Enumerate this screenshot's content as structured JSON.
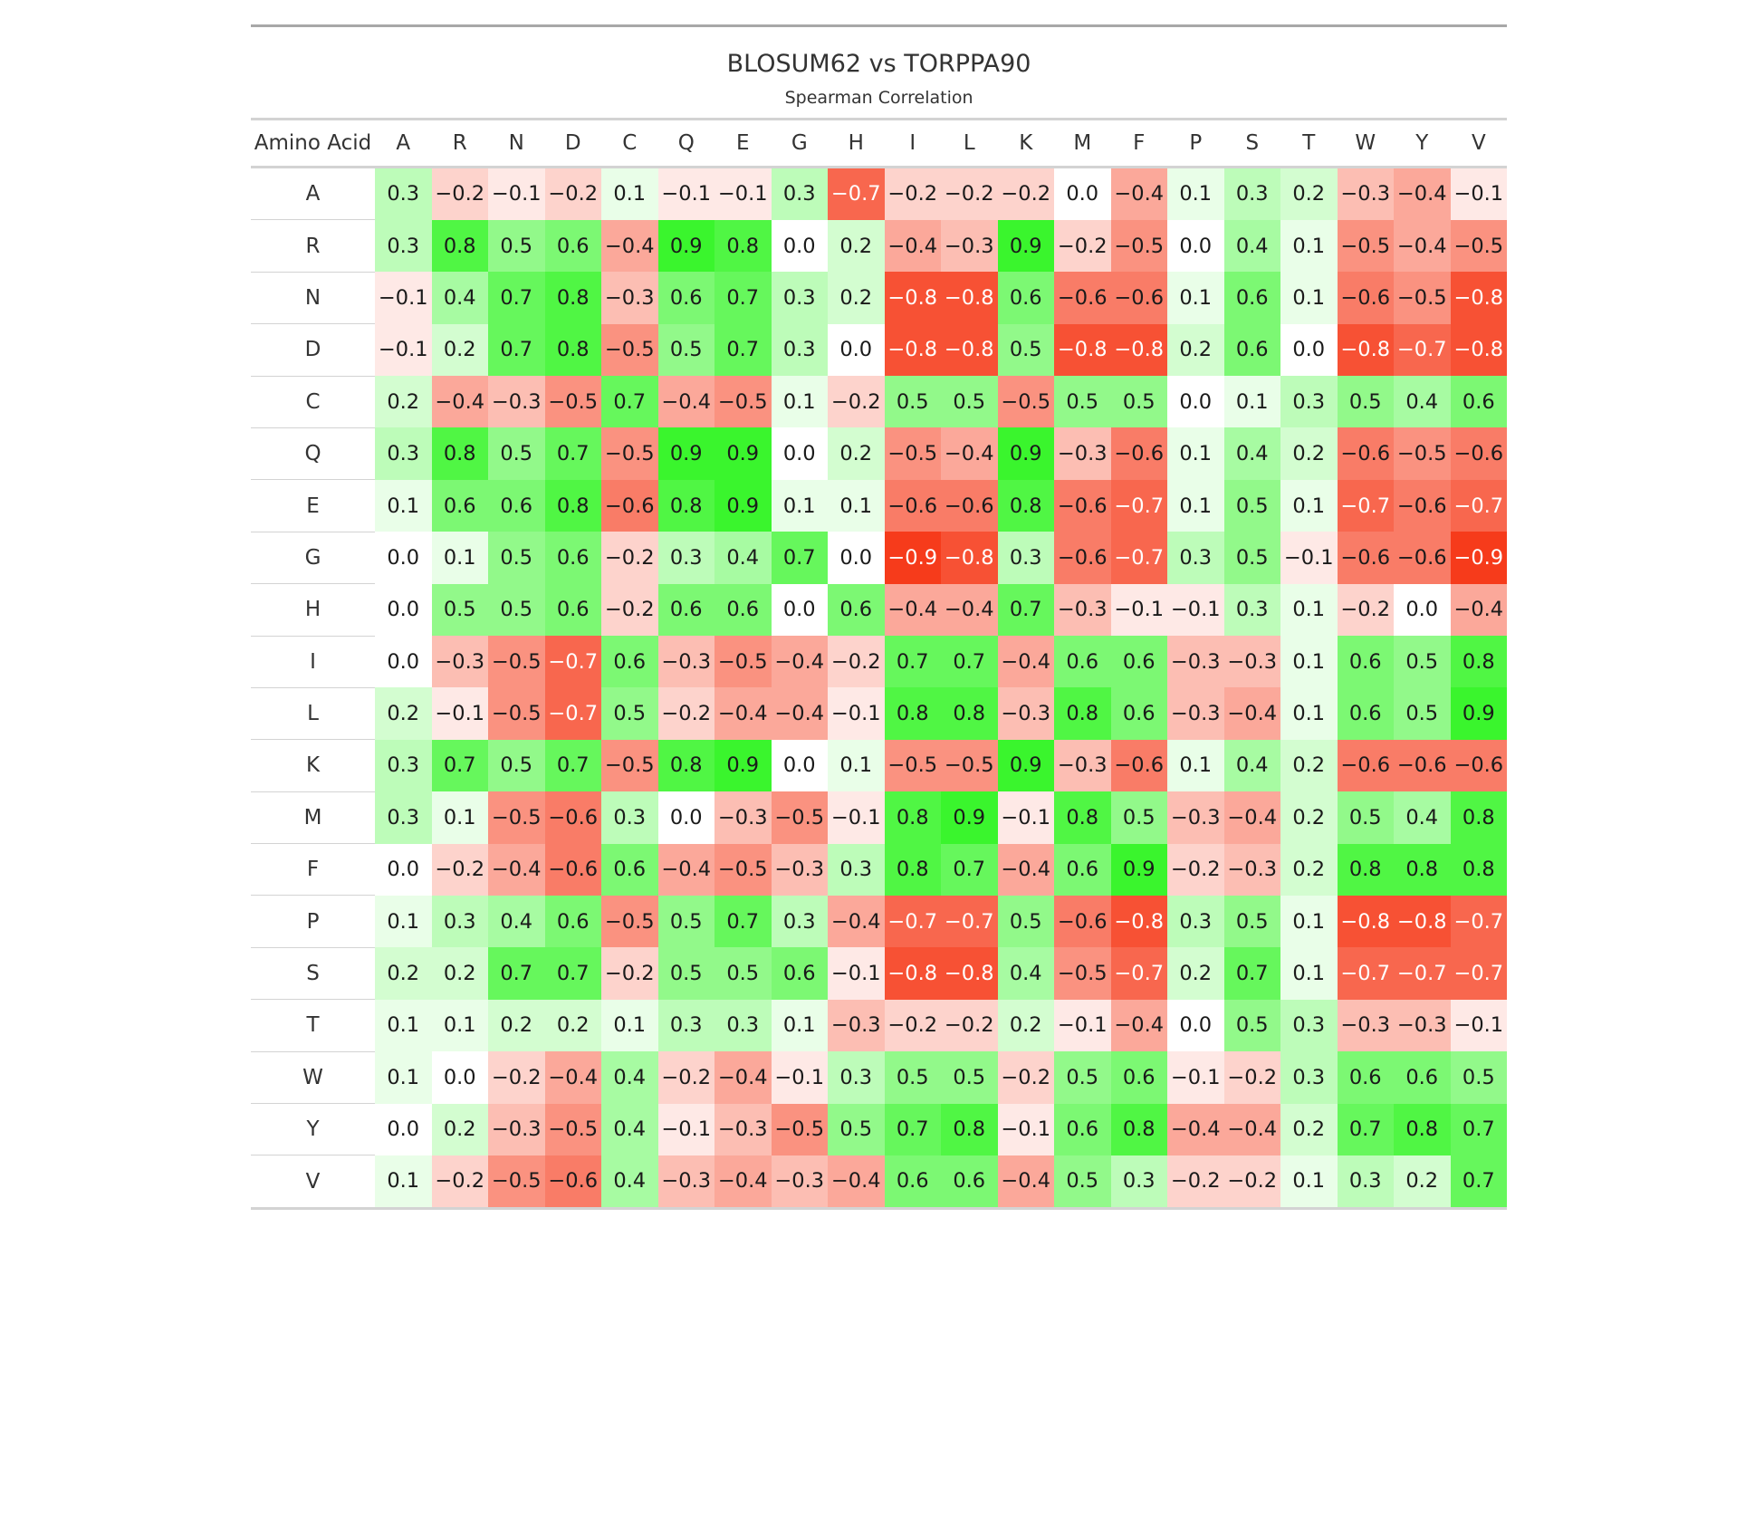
{
  "chart_data": {
    "type": "heatmap",
    "title": "BLOSUM62 vs TORPPA90",
    "subtitle": "Spearman Correlation",
    "row_header": "Amino Acid",
    "columns": [
      "A",
      "R",
      "N",
      "D",
      "C",
      "Q",
      "E",
      "G",
      "H",
      "I",
      "L",
      "K",
      "M",
      "F",
      "P",
      "S",
      "T",
      "W",
      "Y",
      "V"
    ],
    "rows": [
      "A",
      "R",
      "N",
      "D",
      "C",
      "Q",
      "E",
      "G",
      "H",
      "I",
      "L",
      "K",
      "M",
      "F",
      "P",
      "S",
      "T",
      "W",
      "Y",
      "V"
    ],
    "value_range": [
      -0.9,
      0.9
    ],
    "colors": {
      "negative": "#f63b1b",
      "neutral": "#ffffff",
      "positive": "#3af52d",
      "text_dark": "#1a1a1a",
      "text_light": "#ffffff"
    },
    "values": [
      [
        0.3,
        -0.2,
        -0.1,
        -0.2,
        0.1,
        -0.1,
        -0.1,
        0.3,
        -0.7,
        -0.2,
        -0.2,
        -0.2,
        0.0,
        -0.4,
        0.1,
        0.3,
        0.2,
        -0.3,
        -0.4,
        -0.1
      ],
      [
        0.3,
        0.8,
        0.5,
        0.6,
        -0.4,
        0.9,
        0.8,
        0.0,
        0.2,
        -0.4,
        -0.3,
        0.9,
        -0.2,
        -0.5,
        0.0,
        0.4,
        0.1,
        -0.5,
        -0.4,
        -0.5
      ],
      [
        -0.1,
        0.4,
        0.7,
        0.8,
        -0.3,
        0.6,
        0.7,
        0.3,
        0.2,
        -0.8,
        -0.8,
        0.6,
        -0.6,
        -0.6,
        0.1,
        0.6,
        0.1,
        -0.6,
        -0.5,
        -0.8
      ],
      [
        -0.1,
        0.2,
        0.7,
        0.8,
        -0.5,
        0.5,
        0.7,
        0.3,
        0.0,
        -0.8,
        -0.8,
        0.5,
        -0.8,
        -0.8,
        0.2,
        0.6,
        0.0,
        -0.8,
        -0.7,
        -0.8
      ],
      [
        0.2,
        -0.4,
        -0.3,
        -0.5,
        0.7,
        -0.4,
        -0.5,
        0.1,
        -0.2,
        0.5,
        0.5,
        -0.5,
        0.5,
        0.5,
        0.0,
        0.1,
        0.3,
        0.5,
        0.4,
        0.6
      ],
      [
        0.3,
        0.8,
        0.5,
        0.7,
        -0.5,
        0.9,
        0.9,
        0.0,
        0.2,
        -0.5,
        -0.4,
        0.9,
        -0.3,
        -0.6,
        0.1,
        0.4,
        0.2,
        -0.6,
        -0.5,
        -0.6
      ],
      [
        0.1,
        0.6,
        0.6,
        0.8,
        -0.6,
        0.8,
        0.9,
        0.1,
        0.1,
        -0.6,
        -0.6,
        0.8,
        -0.6,
        -0.7,
        0.1,
        0.5,
        0.1,
        -0.7,
        -0.6,
        -0.7
      ],
      [
        0.0,
        0.1,
        0.5,
        0.6,
        -0.2,
        0.3,
        0.4,
        0.7,
        0.0,
        -0.9,
        -0.8,
        0.3,
        -0.6,
        -0.7,
        0.3,
        0.5,
        -0.1,
        -0.6,
        -0.6,
        -0.9
      ],
      [
        0.0,
        0.5,
        0.5,
        0.6,
        -0.2,
        0.6,
        0.6,
        0.0,
        0.6,
        -0.4,
        -0.4,
        0.7,
        -0.3,
        -0.1,
        -0.1,
        0.3,
        0.1,
        -0.2,
        0.0,
        -0.4
      ],
      [
        0.0,
        -0.3,
        -0.5,
        -0.7,
        0.6,
        -0.3,
        -0.5,
        -0.4,
        -0.2,
        0.7,
        0.7,
        -0.4,
        0.6,
        0.6,
        -0.3,
        -0.3,
        0.1,
        0.6,
        0.5,
        0.8
      ],
      [
        0.2,
        -0.1,
        -0.5,
        -0.7,
        0.5,
        -0.2,
        -0.4,
        -0.4,
        -0.1,
        0.8,
        0.8,
        -0.3,
        0.8,
        0.6,
        -0.3,
        -0.4,
        0.1,
        0.6,
        0.5,
        0.9
      ],
      [
        0.3,
        0.7,
        0.5,
        0.7,
        -0.5,
        0.8,
        0.9,
        0.0,
        0.1,
        -0.5,
        -0.5,
        0.9,
        -0.3,
        -0.6,
        0.1,
        0.4,
        0.2,
        -0.6,
        -0.6,
        -0.6
      ],
      [
        0.3,
        0.1,
        -0.5,
        -0.6,
        0.3,
        0.0,
        -0.3,
        -0.5,
        -0.1,
        0.8,
        0.9,
        -0.1,
        0.8,
        0.5,
        -0.3,
        -0.4,
        0.2,
        0.5,
        0.4,
        0.8
      ],
      [
        0.0,
        -0.2,
        -0.4,
        -0.6,
        0.6,
        -0.4,
        -0.5,
        -0.3,
        0.3,
        0.8,
        0.7,
        -0.4,
        0.6,
        0.9,
        -0.2,
        -0.3,
        0.2,
        0.8,
        0.8,
        0.8
      ],
      [
        0.1,
        0.3,
        0.4,
        0.6,
        -0.5,
        0.5,
        0.7,
        0.3,
        -0.4,
        -0.7,
        -0.7,
        0.5,
        -0.6,
        -0.8,
        0.3,
        0.5,
        0.1,
        -0.8,
        -0.8,
        -0.7
      ],
      [
        0.2,
        0.2,
        0.7,
        0.7,
        -0.2,
        0.5,
        0.5,
        0.6,
        -0.1,
        -0.8,
        -0.8,
        0.4,
        -0.5,
        -0.7,
        0.2,
        0.7,
        0.1,
        -0.7,
        -0.7,
        -0.7
      ],
      [
        0.1,
        0.1,
        0.2,
        0.2,
        0.1,
        0.3,
        0.3,
        0.1,
        -0.3,
        -0.2,
        -0.2,
        0.2,
        -0.1,
        -0.4,
        0.0,
        0.5,
        0.3,
        -0.3,
        -0.3,
        -0.1
      ],
      [
        0.1,
        0.0,
        -0.2,
        -0.4,
        0.4,
        -0.2,
        -0.4,
        -0.1,
        0.3,
        0.5,
        0.5,
        -0.2,
        0.5,
        0.6,
        -0.1,
        -0.2,
        0.3,
        0.6,
        0.6,
        0.5
      ],
      [
        0.0,
        0.2,
        -0.3,
        -0.5,
        0.4,
        -0.1,
        -0.3,
        -0.5,
        0.5,
        0.7,
        0.8,
        -0.1,
        0.6,
        0.8,
        -0.4,
        -0.4,
        0.2,
        0.7,
        0.8,
        0.7
      ],
      [
        0.1,
        -0.2,
        -0.5,
        -0.6,
        0.4,
        -0.3,
        -0.4,
        -0.3,
        -0.4,
        0.6,
        0.6,
        -0.4,
        0.5,
        0.3,
        -0.2,
        -0.2,
        0.1,
        0.3,
        0.2,
        0.7
      ]
    ]
  }
}
